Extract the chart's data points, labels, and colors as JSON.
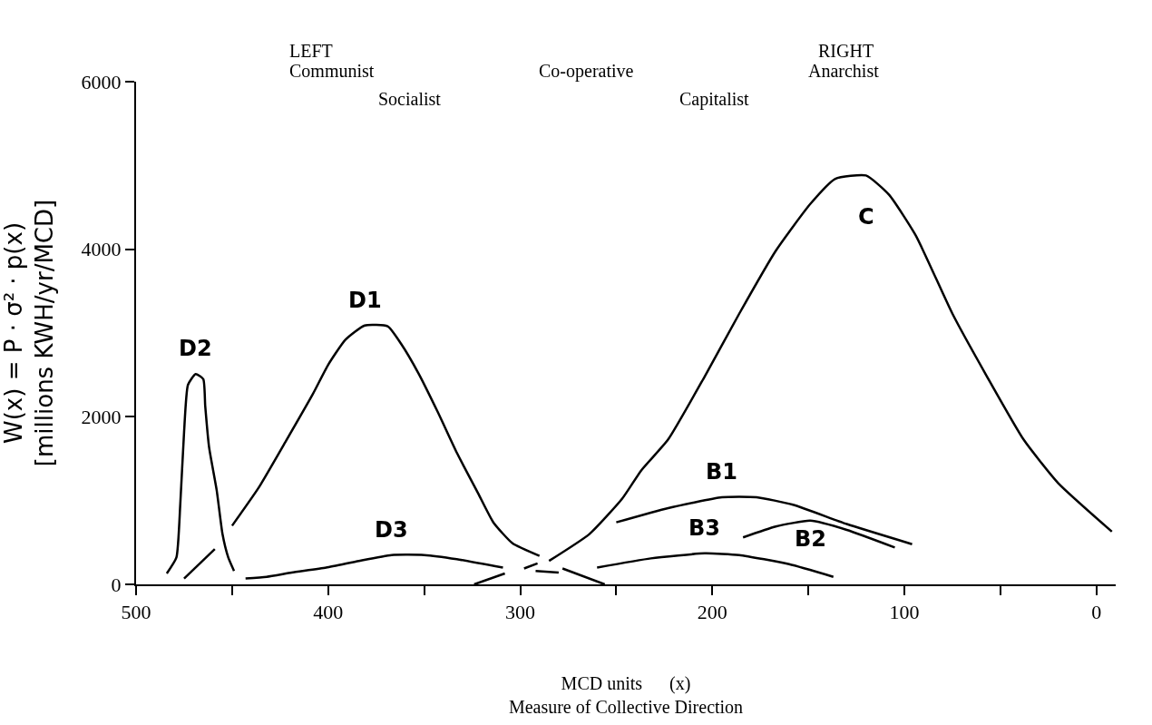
{
  "chart_data": {
    "type": "line",
    "xlabel": "MCD units      (x)\nMeasure of Collective Direction",
    "ylabel": "W(x) = P · σ² · p(x)\n[millions KWH/yr/MCD]",
    "xlim": [
      500,
      -10
    ],
    "ylim": [
      0,
      6000
    ],
    "xticks": [
      500,
      {
        "value": 450,
        "label": null
      },
      400,
      {
        "value": 350,
        "label": null
      },
      300,
      {
        "value": 250,
        "label": null
      },
      200,
      {
        "value": 150,
        "label": null
      },
      100,
      {
        "value": 50,
        "label": null
      },
      0
    ],
    "yticks": [
      0,
      2000,
      4000,
      6000
    ],
    "legend": false,
    "marker": "none",
    "line_style": "solid",
    "series": [
      {
        "name": "D2",
        "color": "#000000",
        "x": [
          484,
          479,
          477,
          475,
          473,
          469,
          465,
          464,
          462,
          458,
          455,
          452,
          449
        ],
        "values": [
          130,
          320,
          950,
          1820,
          2380,
          2510,
          2450,
          2130,
          1640,
          1120,
          600,
          320,
          160
        ]
      },
      {
        "color": "#000000",
        "x": [
          475,
          459
        ],
        "values": [
          70,
          420
        ]
      },
      {
        "name": "D1",
        "color": "#000000",
        "x": [
          450,
          436,
          422,
          408,
          400,
          391,
          381,
          369,
          362,
          353,
          343,
          333,
          322,
          314,
          304,
          290
        ],
        "values": [
          700,
          1160,
          1710,
          2270,
          2620,
          2920,
          3090,
          3080,
          2870,
          2520,
          2060,
          1570,
          1090,
          740,
          490,
          340
        ]
      },
      {
        "name": "D3",
        "color": "#000000",
        "x": [
          443,
          432,
          419,
          401,
          384,
          367,
          350,
          333,
          309
        ],
        "values": [
          70,
          90,
          140,
          200,
          280,
          350,
          350,
          300,
          200
        ]
      },
      {
        "color": "#000000",
        "x": [
          324,
          308
        ],
        "values": [
          0,
          130
        ]
      },
      {
        "color": "#000000",
        "x": [
          298,
          291
        ],
        "values": [
          190,
          250
        ]
      },
      {
        "color": "#000000",
        "x": [
          292,
          280
        ],
        "values": [
          160,
          140
        ]
      },
      {
        "color": "#000000",
        "x": [
          278,
          256
        ],
        "values": [
          190,
          0
        ]
      },
      {
        "name": "C",
        "color": "#000000",
        "x": [
          285,
          264,
          247,
          237,
          223,
          204,
          186,
          167,
          149,
          136,
          120,
          108,
          94,
          75,
          57,
          38,
          20,
          -8
        ],
        "values": [
          280,
          600,
          1020,
          1360,
          1730,
          2480,
          3230,
          3980,
          4540,
          4840,
          4880,
          4650,
          4160,
          3230,
          2480,
          1730,
          1210,
          630
        ]
      },
      {
        "name": "B1",
        "color": "#000000",
        "x": [
          250,
          223,
          195,
          177,
          158,
          130,
          96
        ],
        "values": [
          740,
          910,
          1040,
          1040,
          950,
          720,
          480
        ]
      },
      {
        "name": "B2",
        "color": "#000000",
        "x": [
          184,
          167,
          149,
          130,
          105
        ],
        "values": [
          560,
          690,
          760,
          650,
          440
        ]
      },
      {
        "name": "B3",
        "color": "#000000",
        "x": [
          260,
          232,
          204,
          186,
          160,
          137
        ],
        "values": [
          200,
          310,
          370,
          350,
          240,
          90
        ]
      }
    ],
    "annotations": [
      "LEFT",
      "Communist",
      "Socialist",
      "Co-operative",
      "Capitalist",
      "RIGHT",
      "Anarchist"
    ]
  }
}
